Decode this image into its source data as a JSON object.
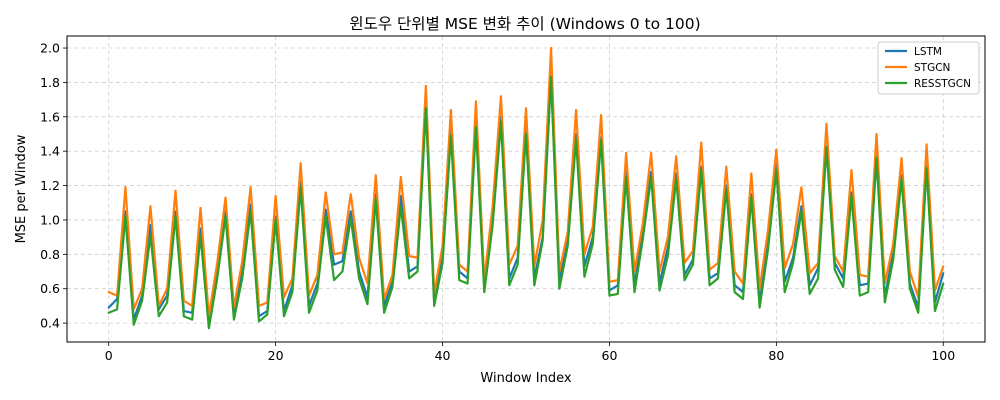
{
  "chart_data": {
    "type": "line",
    "title": "윈도우 단위별 MSE 변화 추이 (Windows 0 to 100)",
    "xlabel": "Window Index",
    "ylabel": "MSE per Window",
    "xlim": [
      -5,
      105
    ],
    "ylim": [
      0.29,
      2.07
    ],
    "xticks": [
      0,
      20,
      40,
      60,
      80,
      100
    ],
    "yticks": [
      0.4,
      0.6,
      0.8,
      1.0,
      1.2,
      1.4,
      1.6,
      1.8,
      2.0
    ],
    "ytick_labels": [
      "0.4",
      "0.6",
      "0.8",
      "1.0",
      "1.2",
      "1.4",
      "1.6",
      "1.8",
      "2.0"
    ],
    "grid": true,
    "legend_position": "top-right",
    "x": [
      0,
      1,
      2,
      3,
      4,
      5,
      6,
      7,
      8,
      9,
      10,
      11,
      12,
      13,
      14,
      15,
      16,
      17,
      18,
      19,
      20,
      21,
      22,
      23,
      24,
      25,
      26,
      27,
      28,
      29,
      30,
      31,
      32,
      33,
      34,
      35,
      36,
      37,
      38,
      39,
      40,
      41,
      42,
      43,
      44,
      45,
      46,
      47,
      48,
      49,
      50,
      51,
      52,
      53,
      54,
      55,
      56,
      57,
      58,
      59,
      60,
      61,
      62,
      63,
      64,
      65,
      66,
      67,
      68,
      69,
      70,
      71,
      72,
      73,
      74,
      75,
      76,
      77,
      78,
      79,
      80,
      81,
      82,
      83,
      84,
      85,
      86,
      87,
      88,
      89,
      90,
      91,
      92,
      93,
      94,
      95,
      96,
      97,
      98,
      99,
      100
    ],
    "series": [
      {
        "name": "LSTM",
        "color": "#1f77b4",
        "values": [
          0.49,
          0.54,
          1.05,
          0.42,
          0.56,
          0.97,
          0.48,
          0.56,
          1.05,
          0.47,
          0.46,
          0.95,
          0.4,
          0.7,
          1.05,
          0.45,
          0.7,
          1.09,
          0.44,
          0.47,
          1.02,
          0.47,
          0.62,
          1.22,
          0.5,
          0.63,
          1.06,
          0.74,
          0.76,
          1.05,
          0.7,
          0.55,
          1.15,
          0.5,
          0.64,
          1.14,
          0.7,
          0.73,
          1.67,
          0.52,
          0.78,
          1.52,
          0.7,
          0.66,
          1.57,
          0.61,
          1.01,
          1.6,
          0.66,
          0.78,
          1.53,
          0.66,
          0.9,
          1.84,
          0.64,
          0.88,
          1.5,
          0.73,
          0.9,
          1.48,
          0.59,
          0.62,
          1.28,
          0.62,
          0.93,
          1.28,
          0.63,
          0.84,
          1.27,
          0.68,
          0.77,
          1.31,
          0.66,
          0.69,
          1.2,
          0.62,
          0.58,
          1.15,
          0.52,
          0.87,
          1.32,
          0.64,
          0.78,
          1.08,
          0.62,
          0.72,
          1.43,
          0.75,
          0.66,
          1.16,
          0.62,
          0.63,
          1.37,
          0.55,
          0.81,
          1.26,
          0.63,
          0.49,
          1.32,
          0.52,
          0.69
        ]
      },
      {
        "name": "STGCN",
        "color": "#ff7f0e",
        "values": [
          0.58,
          0.56,
          1.19,
          0.48,
          0.6,
          1.08,
          0.5,
          0.6,
          1.17,
          0.53,
          0.5,
          1.07,
          0.44,
          0.75,
          1.13,
          0.49,
          0.76,
          1.19,
          0.5,
          0.52,
          1.14,
          0.55,
          0.66,
          1.33,
          0.56,
          0.68,
          1.16,
          0.8,
          0.81,
          1.15,
          0.78,
          0.63,
          1.26,
          0.54,
          0.68,
          1.25,
          0.79,
          0.78,
          1.78,
          0.57,
          0.85,
          1.64,
          0.74,
          0.7,
          1.69,
          0.65,
          1.08,
          1.72,
          0.74,
          0.85,
          1.65,
          0.73,
          1.0,
          2.0,
          0.7,
          0.93,
          1.64,
          0.8,
          0.96,
          1.61,
          0.64,
          0.65,
          1.39,
          0.7,
          0.98,
          1.39,
          0.7,
          0.9,
          1.37,
          0.75,
          0.82,
          1.45,
          0.71,
          0.75,
          1.31,
          0.7,
          0.63,
          1.27,
          0.6,
          0.94,
          1.41,
          0.72,
          0.86,
          1.19,
          0.69,
          0.75,
          1.56,
          0.79,
          0.7,
          1.29,
          0.68,
          0.67,
          1.5,
          0.63,
          0.86,
          1.36,
          0.7,
          0.55,
          1.44,
          0.59,
          0.73
        ]
      },
      {
        "name": "RESSTGCN",
        "color": "#2ca02c",
        "values": [
          0.46,
          0.48,
          1.02,
          0.39,
          0.53,
          0.91,
          0.44,
          0.52,
          1.02,
          0.44,
          0.42,
          0.91,
          0.37,
          0.66,
          1.02,
          0.42,
          0.66,
          1.05,
          0.41,
          0.45,
          1.0,
          0.44,
          0.58,
          1.19,
          0.46,
          0.59,
          1.02,
          0.65,
          0.7,
          1.01,
          0.66,
          0.51,
          1.12,
          0.46,
          0.61,
          1.08,
          0.66,
          0.7,
          1.65,
          0.5,
          0.75,
          1.49,
          0.65,
          0.63,
          1.54,
          0.58,
          0.97,
          1.57,
          0.62,
          0.74,
          1.5,
          0.62,
          0.88,
          1.83,
          0.6,
          0.85,
          1.47,
          0.67,
          0.86,
          1.46,
          0.56,
          0.57,
          1.25,
          0.58,
          0.89,
          1.25,
          0.59,
          0.79,
          1.24,
          0.65,
          0.74,
          1.29,
          0.62,
          0.66,
          1.18,
          0.58,
          0.54,
          1.13,
          0.49,
          0.83,
          1.29,
          0.58,
          0.75,
          1.05,
          0.57,
          0.66,
          1.42,
          0.71,
          0.61,
          1.14,
          0.56,
          0.58,
          1.36,
          0.52,
          0.77,
          1.24,
          0.6,
          0.46,
          1.3,
          0.47,
          0.63
        ]
      }
    ]
  }
}
